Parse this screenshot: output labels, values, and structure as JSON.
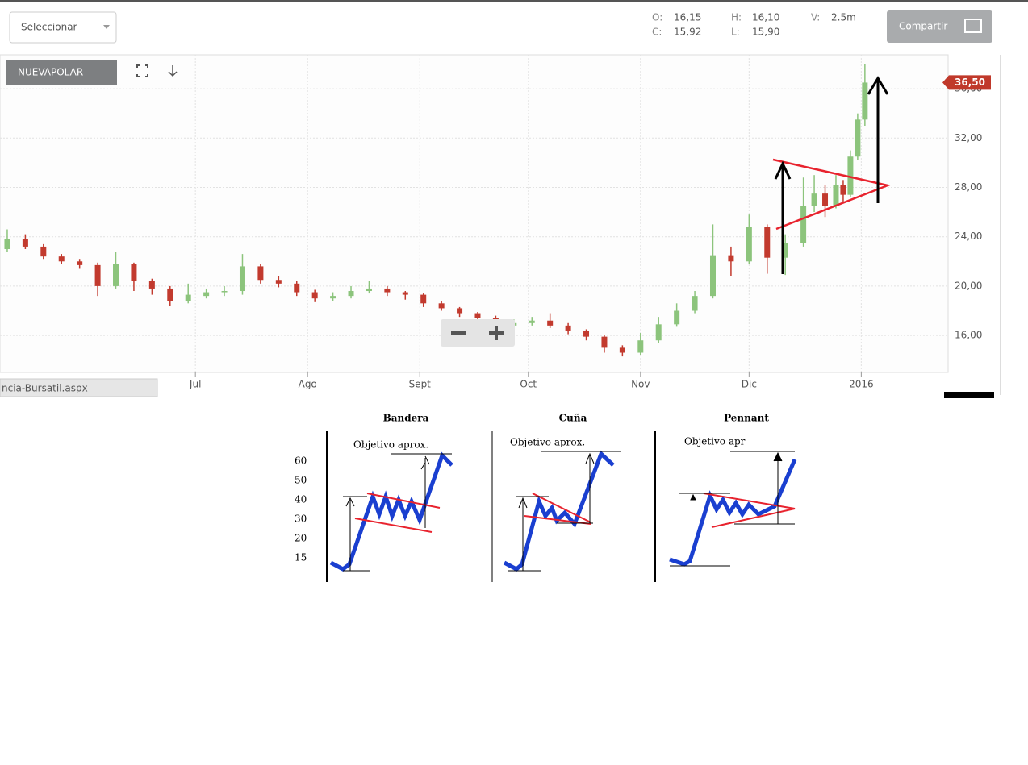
{
  "toolbar": {
    "select": "Seleccionar",
    "open_label": "O:",
    "open": "16,15",
    "close_label": "C:",
    "close": "15,92",
    "high_label": "H:",
    "high": "16,10",
    "low_label": "L:",
    "low": "15,90",
    "volume_label": "V:",
    "volume": "2.5m",
    "share": "Compartir"
  },
  "status_url": "ncia-Bursatil.aspx",
  "chart_data": {
    "type": "candlestick",
    "symbol": "NUEVAPOLAR",
    "x": [
      -52,
      -47,
      -42,
      -37,
      -32,
      -27,
      -22,
      -17,
      -12,
      -7,
      -2,
      3,
      8,
      13,
      18,
      23,
      28,
      33,
      38,
      43,
      48,
      53,
      58,
      63,
      68,
      73,
      78,
      83,
      88,
      93,
      98,
      103,
      108,
      113,
      118,
      123,
      128,
      133,
      138,
      143,
      148,
      153,
      158,
      163,
      168,
      171,
      174,
      177,
      179,
      181,
      183,
      185
    ],
    "open": [
      23.0,
      23.8,
      23.2,
      22.4,
      22.0,
      21.7,
      20.0,
      21.8,
      20.4,
      19.8,
      18.8,
      19.2,
      19.5,
      19.6,
      21.6,
      20.5,
      20.2,
      19.5,
      19.0,
      19.2,
      19.6,
      19.8,
      19.5,
      19.3,
      18.6,
      18.2,
      17.8,
      17.4,
      16.8,
      17.0,
      17.2,
      16.8,
      16.4,
      15.9,
      15.0,
      14.6,
      15.6,
      16.9,
      18.0,
      19.2,
      22.5,
      22.0,
      24.8,
      22.3,
      23.5,
      26.5,
      27.5,
      26.5,
      28.2,
      27.4,
      30.5,
      33.5
    ],
    "high": [
      24.6,
      24.2,
      23.4,
      22.6,
      22.2,
      21.9,
      22.8,
      21.9,
      20.6,
      20.0,
      20.2,
      19.8,
      20.0,
      22.6,
      21.8,
      20.8,
      20.4,
      19.7,
      19.5,
      20.0,
      20.4,
      20.0,
      19.6,
      19.4,
      18.8,
      18.3,
      17.9,
      17.6,
      17.3,
      17.5,
      17.8,
      17.0,
      16.5,
      16.0,
      15.2,
      16.2,
      17.5,
      18.6,
      19.6,
      25.0,
      23.2,
      25.8,
      25.0,
      24.2,
      28.8,
      29.0,
      28.2,
      29.0,
      28.6,
      31.0,
      34.0,
      38.0
    ],
    "low": [
      22.8,
      23.0,
      22.2,
      21.8,
      21.4,
      19.2,
      19.8,
      19.6,
      19.3,
      18.4,
      18.6,
      19.0,
      19.2,
      19.3,
      20.2,
      19.9,
      19.2,
      18.7,
      18.8,
      19.0,
      19.4,
      19.2,
      18.9,
      18.3,
      18.0,
      17.5,
      17.1,
      16.2,
      16.4,
      16.8,
      16.6,
      16.1,
      15.6,
      14.6,
      14.3,
      14.4,
      15.4,
      16.7,
      17.8,
      19.0,
      20.8,
      21.8,
      21.0,
      20.9,
      23.2,
      26.0,
      25.6,
      26.3,
      26.8,
      27.2,
      30.2,
      33.0
    ],
    "close": [
      23.8,
      23.2,
      22.4,
      22.0,
      21.7,
      20.0,
      21.8,
      20.4,
      19.8,
      18.8,
      19.3,
      19.5,
      19.6,
      21.6,
      20.5,
      20.2,
      19.5,
      19.0,
      19.2,
      19.6,
      19.8,
      19.5,
      19.3,
      18.6,
      18.2,
      17.8,
      17.4,
      16.8,
      17.0,
      17.2,
      16.8,
      16.4,
      15.9,
      15.0,
      14.6,
      15.6,
      16.9,
      18.0,
      19.2,
      22.5,
      22.0,
      24.8,
      22.3,
      23.5,
      26.5,
      27.5,
      26.5,
      28.2,
      27.4,
      30.5,
      33.5,
      36.5
    ],
    "xlim": [
      -54,
      208
    ],
    "ylim": [
      13,
      38.75
    ],
    "xticks": [
      {
        "value": 0,
        "label": "Jul"
      },
      {
        "value": 31,
        "label": "Ago"
      },
      {
        "value": 62,
        "label": "Sept"
      },
      {
        "value": 92,
        "label": "Oct"
      },
      {
        "value": 123,
        "label": "Nov"
      },
      {
        "value": 153,
        "label": "Dic"
      },
      {
        "value": 184,
        "label": "2016"
      }
    ],
    "yticks": [
      {
        "value": 16,
        "label": "16,00"
      },
      {
        "value": 20,
        "label": "20,00"
      },
      {
        "value": 24,
        "label": "24,00"
      },
      {
        "value": 28,
        "label": "28,00"
      },
      {
        "value": 32,
        "label": "32,00"
      },
      {
        "value": 36,
        "label": "36,00"
      }
    ],
    "last_price": {
      "value": 36.5,
      "label": "36,50"
    },
    "grid": true,
    "up_color": "#8cc47c",
    "down_color": "#c23a2e"
  },
  "patterns": {
    "y_labels": [
      "60",
      "50",
      "40",
      "30",
      "20",
      "15"
    ],
    "panels": [
      {
        "title": "Bandera",
        "note": "Objetivo aprox."
      },
      {
        "title": "Cuña",
        "note": "Objetivo aprox."
      },
      {
        "title": "Pennant",
        "note": "Objetivo apr"
      }
    ]
  }
}
